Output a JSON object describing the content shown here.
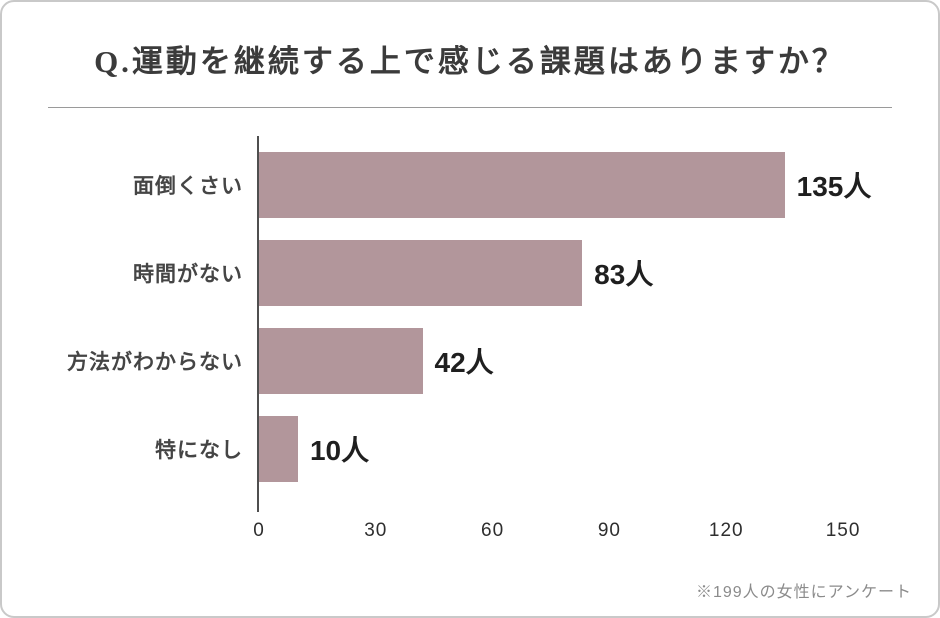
{
  "page": {
    "title": "Q.運動を継続する上で感じる課題はありますか？",
    "footnote": "※199人の女性にアンケート"
  },
  "chart_data": {
    "type": "bar",
    "orientation": "horizontal",
    "title": "Q.運動を継続する上で感じる課題はありますか？",
    "categories": [
      "面倒くさい",
      "時間がない",
      "方法がわからない",
      "特になし"
    ],
    "values": [
      135,
      83,
      42,
      10
    ],
    "value_labels": [
      "135人",
      "83人",
      "42人",
      "10人"
    ],
    "unit": "人",
    "xticks": [
      0,
      30,
      60,
      90,
      120,
      150
    ],
    "xlim": [
      0,
      160
    ],
    "bar_color": "#b2969b",
    "axis_color": "#4f4f4f",
    "footnote": "※199人の女性にアンケート",
    "legend": "none",
    "grid": "off"
  }
}
